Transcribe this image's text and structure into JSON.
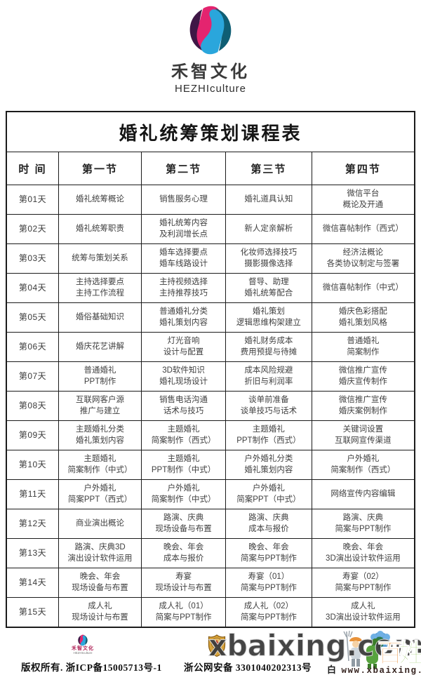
{
  "brand": {
    "name_cn": "禾智文化",
    "name_en": "HEZHIculture"
  },
  "table": {
    "title": "婚礼统筹策划课程表",
    "columns": [
      "时  间",
      "第一节",
      "第二节",
      "第三节",
      "第四节"
    ],
    "rows": [
      {
        "day": "第01天",
        "cells": [
          "婚礼统筹概论",
          "销售服务心理",
          "婚礼道具认知",
          "微信平台\n概论及开通"
        ]
      },
      {
        "day": "第02天",
        "cells": [
          "婚礼统筹职责",
          "婚礼统筹内容\n及利润增长点",
          "新人定亲解析",
          "微信喜帖制作（西式）"
        ]
      },
      {
        "day": "第03天",
        "cells": [
          "统筹与策划关系",
          "婚车选择要点\n婚车线路设计",
          "化妆师选择技巧\n摄影摄像选择",
          "经济法概论\n各类协议制定与签署"
        ]
      },
      {
        "day": "第04天",
        "cells": [
          "主持选择要点\n主持工作流程",
          "主持视频选择\n主持推荐技巧",
          "督导、助理\n婚礼统筹配合",
          "微信喜帖制作（中式）"
        ]
      },
      {
        "day": "第05天",
        "cells": [
          "婚俗基础知识",
          "普通婚礼分类\n婚礼策划内容",
          "婚礼策划\n逻辑思维构架建立",
          "婚庆色彩搭配\n婚礼策划风格"
        ]
      },
      {
        "day": "第06天",
        "cells": [
          "婚庆花艺讲解",
          "灯光音响\n设计与配置",
          "婚礼财务成本\n费用预提与待摊",
          "普通婚礼\n简案制作"
        ]
      },
      {
        "day": "第07天",
        "cells": [
          "普通婚礼\nPPT制作",
          "3D软件知识\n婚礼现场设计",
          "成本风险规避\n折旧与利润率",
          "微信推广宣传\n婚庆宣传制作"
        ]
      },
      {
        "day": "第08天",
        "cells": [
          "互联网客户源\n推广与建立",
          "销售电话沟通\n话术与技巧",
          "谈单前准备\n谈单技巧与话术",
          "微信推广宣传\n婚庆案例制作"
        ]
      },
      {
        "day": "第09天",
        "cells": [
          "主题婚礼分类\n婚礼策划内容",
          "主题婚礼\n简案制作（西式）",
          "主题婚礼\nPPT制作（西式）",
          "关键词设置\n互联网宣传渠道"
        ]
      },
      {
        "day": "第10天",
        "cells": [
          "主题婚礼\n简案制作（中式）",
          "主题婚礼\nPPT制作（中式）",
          "户外婚礼分类\n婚礼策划内容",
          "户外婚礼\n简案制作（西式）"
        ]
      },
      {
        "day": "第11天",
        "cells": [
          "户外婚礼\n简案PPT（西式）",
          "户外婚礼\n简案制作（中式）",
          "户外婚礼\n简案PPT（中式）",
          "网络宣传内容编辑"
        ]
      },
      {
        "day": "第12天",
        "cells": [
          "商业演出概论",
          "路演、庆典\n现场设备与布置",
          "路演、庆典\n成本与报价",
          "路演、庆典\n简案与PPT制作"
        ]
      },
      {
        "day": "第13天",
        "cells": [
          "路演、庆典3D\n演出设计软件运用",
          "晚会、年会\n成本与报价",
          "晚会、年会\n简案与PPT制作",
          "晚会、年会\n3D演出设计软件运用"
        ]
      },
      {
        "day": "第14天",
        "cells": [
          "晚会、年会\n现场设备与布置",
          "寿宴\n现场设计与布置",
          "寿宴（01）\n简案与PPT制作",
          "寿宴（02）\n简案与PPT制作"
        ]
      },
      {
        "day": "第15天",
        "cells": [
          "成人礼\n现场设计与布置",
          "成人礼（01）\n简案与PPT制作",
          "成人礼（02）\n简案与PPT制作",
          "成人礼\n3D演出设计软件运用"
        ]
      }
    ]
  },
  "footer": {
    "brand_cn": "禾智文化",
    "brand_en": "HEZHIculture",
    "copyright": "版权所有. 浙ICP备15005713号-1",
    "police_label": "浙公网安备 3301040202313号",
    "watermark_large": "xbaixing.com",
    "watermark_fragment": "白",
    "watermark_url": "www.xbaixing.com",
    "baixing_char_1": "百",
    "baixing_char_2": "姓"
  },
  "colors": {
    "logo_magenta": "#e4246f",
    "logo_purple": "#3f1746",
    "logo_blue": "#2aa6dc",
    "logo_teal": "#0f5e74",
    "table_border": "#1b1b1b",
    "text": "#3f3f3f",
    "baixing_orange": "#e8872a",
    "baixing_green": "#7cb93c"
  }
}
